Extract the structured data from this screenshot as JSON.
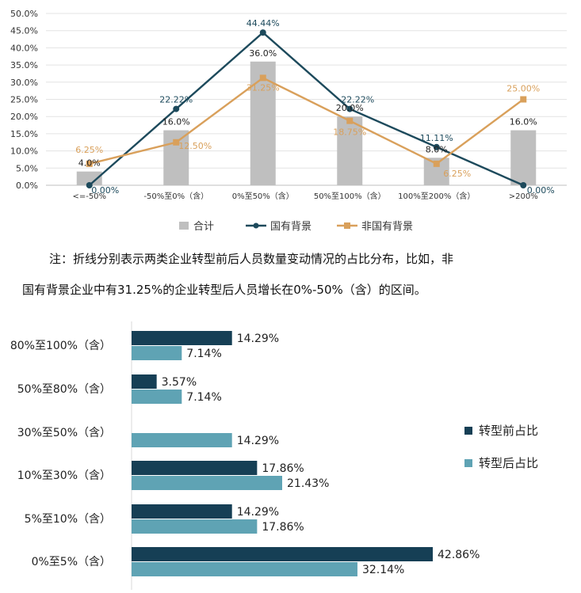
{
  "chart_data": [
    {
      "type": "bar+line",
      "categories": [
        "<=-50%",
        "-50%至0%（含）",
        "0%至50%（含）",
        "50%至100%（含）",
        "100%至200%（含）",
        ">200%"
      ],
      "ylim": [
        0,
        50
      ],
      "yticks": [
        "0.0%",
        "5.0%",
        "10.0%",
        "15.0%",
        "20.0%",
        "25.0%",
        "30.0%",
        "35.0%",
        "40.0%",
        "45.0%",
        "50.0%"
      ],
      "grid": true,
      "legend_position": "bottom",
      "series": [
        {
          "name": "合计",
          "kind": "bar",
          "color": "#bfbfbf",
          "values": [
            4.0,
            16.0,
            36.0,
            20.0,
            8.0,
            16.0
          ],
          "labels": [
            "4.0%",
            "16.0%",
            "36.0%",
            "20.0%",
            "8.0%",
            "16.0%"
          ]
        },
        {
          "name": "国有背景",
          "kind": "line",
          "color": "#1d4a5c",
          "values": [
            0.0,
            22.22,
            44.44,
            22.22,
            11.11,
            0.0
          ],
          "labels": [
            "0.00%",
            "22.22%",
            "44.44%",
            "22.22%",
            "11.11%",
            "0.00%"
          ]
        },
        {
          "name": "非国有背景",
          "kind": "line",
          "color": "#d9a05b",
          "values": [
            6.25,
            12.5,
            31.25,
            18.75,
            6.25,
            25.0
          ],
          "labels": [
            "6.25%",
            "12.50%",
            "31.25%",
            "18.75%",
            "6.25%",
            "25.00%"
          ]
        }
      ]
    },
    {
      "type": "bar",
      "orientation": "horizontal",
      "categories": [
        "80%至100%（含）",
        "50%至80%（含）",
        "30%至50%（含）",
        "10%至30%（含）",
        "5%至10%（含）",
        "0%至5%（含）"
      ],
      "xlim": [
        0,
        50
      ],
      "legend_position": "right",
      "series": [
        {
          "name": "转型前占比",
          "color": "#163f55",
          "values": [
            14.29,
            3.57,
            0,
            17.86,
            14.29,
            42.86
          ],
          "labels": [
            "14.29%",
            "3.57%",
            "",
            "17.86%",
            "14.29%",
            "42.86%"
          ]
        },
        {
          "name": "转型后占比",
          "color": "#5fa3b4",
          "values": [
            7.14,
            7.14,
            14.29,
            21.43,
            17.86,
            32.14
          ],
          "labels": [
            "7.14%",
            "7.14%",
            "14.29%",
            "21.43%",
            "17.86%",
            "32.14%"
          ]
        }
      ]
    }
  ],
  "note": {
    "line1": "注：折线分别表示两类企业转型前后人员数量变动情况的占比分布，比如，非",
    "line2": "国有背景企业中有31.25%的企业转型后人员增长在0%-50%（含）的区间。"
  }
}
